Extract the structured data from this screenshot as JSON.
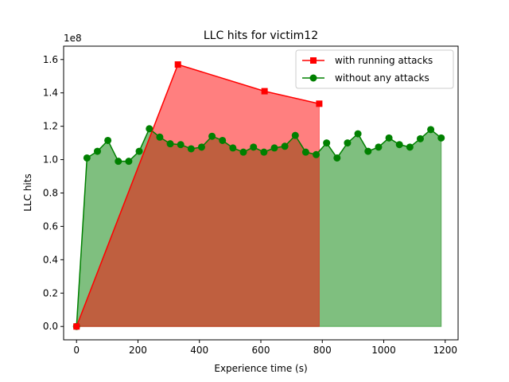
{
  "chart_data": {
    "type": "area",
    "title": "LLC hits for victim12",
    "xlabel": "Experience time (s)",
    "ylabel": "LLC hits",
    "y_offset_label": "1e8",
    "y_scale": 100000000,
    "xlim": [
      -42,
      1242
    ],
    "ylim": [
      -0.08,
      1.68
    ],
    "x_ticks": [
      0,
      200,
      400,
      600,
      800,
      1000,
      1200
    ],
    "y_ticks": [
      0.0,
      0.2,
      0.4,
      0.6,
      0.8,
      1.0,
      1.2,
      1.4,
      1.6
    ],
    "legend_position": "upper right",
    "series": [
      {
        "name": "with running attacks",
        "color": "#ff0000",
        "fill_color": "#ff0000",
        "marker": "square",
        "x": [
          0,
          330,
          612,
          790
        ],
        "y": [
          0.0,
          1.57,
          1.41,
          1.335
        ]
      },
      {
        "name": "without any attacks",
        "color": "#008000",
        "fill_color": "#008000",
        "marker": "circle",
        "x": [
          0,
          34,
          68,
          102,
          136,
          170,
          204,
          237,
          271,
          305,
          339,
          373,
          407,
          441,
          475,
          509,
          543,
          576,
          610,
          644,
          678,
          712,
          746,
          780,
          814,
          848,
          882,
          916,
          949,
          983,
          1017,
          1051,
          1085,
          1119,
          1153,
          1187
        ],
        "y": [
          0.0,
          1.01,
          1.05,
          1.115,
          0.99,
          0.99,
          1.05,
          1.185,
          1.135,
          1.095,
          1.09,
          1.065,
          1.075,
          1.14,
          1.115,
          1.07,
          1.045,
          1.075,
          1.045,
          1.07,
          1.08,
          1.145,
          1.045,
          1.03,
          1.1,
          1.01,
          1.1,
          1.155,
          1.05,
          1.075,
          1.13,
          1.09,
          1.075,
          1.125,
          1.18,
          1.13
        ]
      }
    ]
  }
}
